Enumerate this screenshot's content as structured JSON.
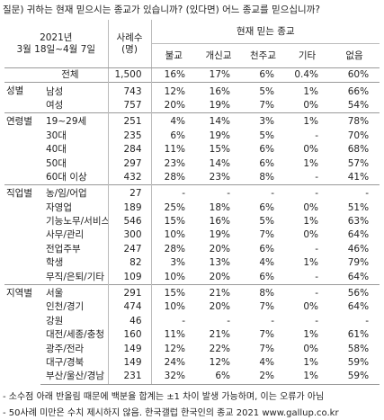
{
  "question": "질문)  귀하는 현재 믿으시는 종교가 있습니까? (있다면) 어느 종교를 믿으십니까?",
  "table": {
    "header": {
      "period_year": "2021년",
      "period_dates": "3월 18일~4월 7일",
      "sample_label": "사례수",
      "sample_unit": "(명)",
      "group_title": "현재 믿는 종교",
      "columns": [
        "불교",
        "개신교",
        "천주교",
        "기타",
        "없음"
      ]
    },
    "total": {
      "label": "전체",
      "n": "1,500",
      "values": [
        "16%",
        "17%",
        "6%",
        "0.4%",
        "60%"
      ]
    },
    "groups": [
      {
        "label": "성별",
        "rows": [
          {
            "label": "남성",
            "n": "743",
            "values": [
              "12%",
              "16%",
              "5%",
              "1%",
              "66%"
            ]
          },
          {
            "label": "여성",
            "n": "757",
            "values": [
              "20%",
              "19%",
              "7%",
              "0%",
              "54%"
            ]
          }
        ]
      },
      {
        "label": "연령별",
        "rows": [
          {
            "label": "19~29세",
            "n": "251",
            "values": [
              "4%",
              "14%",
              "3%",
              "1%",
              "78%"
            ]
          },
          {
            "label": "30대",
            "n": "235",
            "values": [
              "6%",
              "19%",
              "5%",
              "-",
              "70%"
            ]
          },
          {
            "label": "40대",
            "n": "284",
            "values": [
              "11%",
              "15%",
              "6%",
              "0%",
              "68%"
            ]
          },
          {
            "label": "50대",
            "n": "297",
            "values": [
              "23%",
              "14%",
              "6%",
              "1%",
              "57%"
            ]
          },
          {
            "label": "60대 이상",
            "n": "432",
            "values": [
              "28%",
              "23%",
              "8%",
              "-",
              "41%"
            ]
          }
        ]
      },
      {
        "label": "직업별",
        "rows": [
          {
            "label": "농/임/어업",
            "n": "27",
            "values": [
              "-",
              "-",
              "-",
              "-",
              "-"
            ]
          },
          {
            "label": "자영업",
            "n": "189",
            "values": [
              "25%",
              "18%",
              "6%",
              "0%",
              "51%"
            ]
          },
          {
            "label": "기능노무/서비스",
            "n": "546",
            "values": [
              "15%",
              "16%",
              "5%",
              "1%",
              "63%"
            ]
          },
          {
            "label": "사무/관리",
            "n": "300",
            "values": [
              "10%",
              "19%",
              "7%",
              "0%",
              "64%"
            ]
          },
          {
            "label": "전업주부",
            "n": "247",
            "values": [
              "28%",
              "20%",
              "6%",
              "-",
              "46%"
            ]
          },
          {
            "label": "학생",
            "n": "82",
            "values": [
              "3%",
              "13%",
              "4%",
              "1%",
              "79%"
            ]
          },
          {
            "label": "무직/은퇴/기타",
            "n": "109",
            "values": [
              "10%",
              "20%",
              "6%",
              "-",
              "64%"
            ]
          }
        ]
      },
      {
        "label": "지역별",
        "rows": [
          {
            "label": "서울",
            "n": "291",
            "values": [
              "15%",
              "21%",
              "8%",
              "-",
              "56%"
            ]
          },
          {
            "label": "인천/경기",
            "n": "474",
            "values": [
              "10%",
              "20%",
              "7%",
              "0%",
              "64%"
            ]
          },
          {
            "label": "강원",
            "n": "46",
            "values": [
              "-",
              "-",
              "-",
              "-",
              "-"
            ]
          },
          {
            "label": "대전/세종/충청",
            "n": "160",
            "values": [
              "11%",
              "21%",
              "7%",
              "1%",
              "61%"
            ]
          },
          {
            "label": "광주/전라",
            "n": "149",
            "values": [
              "12%",
              "22%",
              "7%",
              "0%",
              "58%"
            ]
          },
          {
            "label": "대구/경북",
            "n": "149",
            "values": [
              "24%",
              "12%",
              "4%",
              "1%",
              "59%"
            ]
          },
          {
            "label": "부산/울산/경남",
            "n": "231",
            "values": [
              "32%",
              "6%",
              "2%",
              "1%",
              "59%"
            ]
          }
        ]
      }
    ]
  },
  "notes": [
    "- 소수점 아래 반올림 때문에 백분율 합계는 ±1 차이 발생 가능하며, 이는 오류가 아님",
    "- 50사례 미만은 수치 제시하지 않음. 한국갤럽 한국인의 종교 2021 www.gallup.co.kr"
  ]
}
